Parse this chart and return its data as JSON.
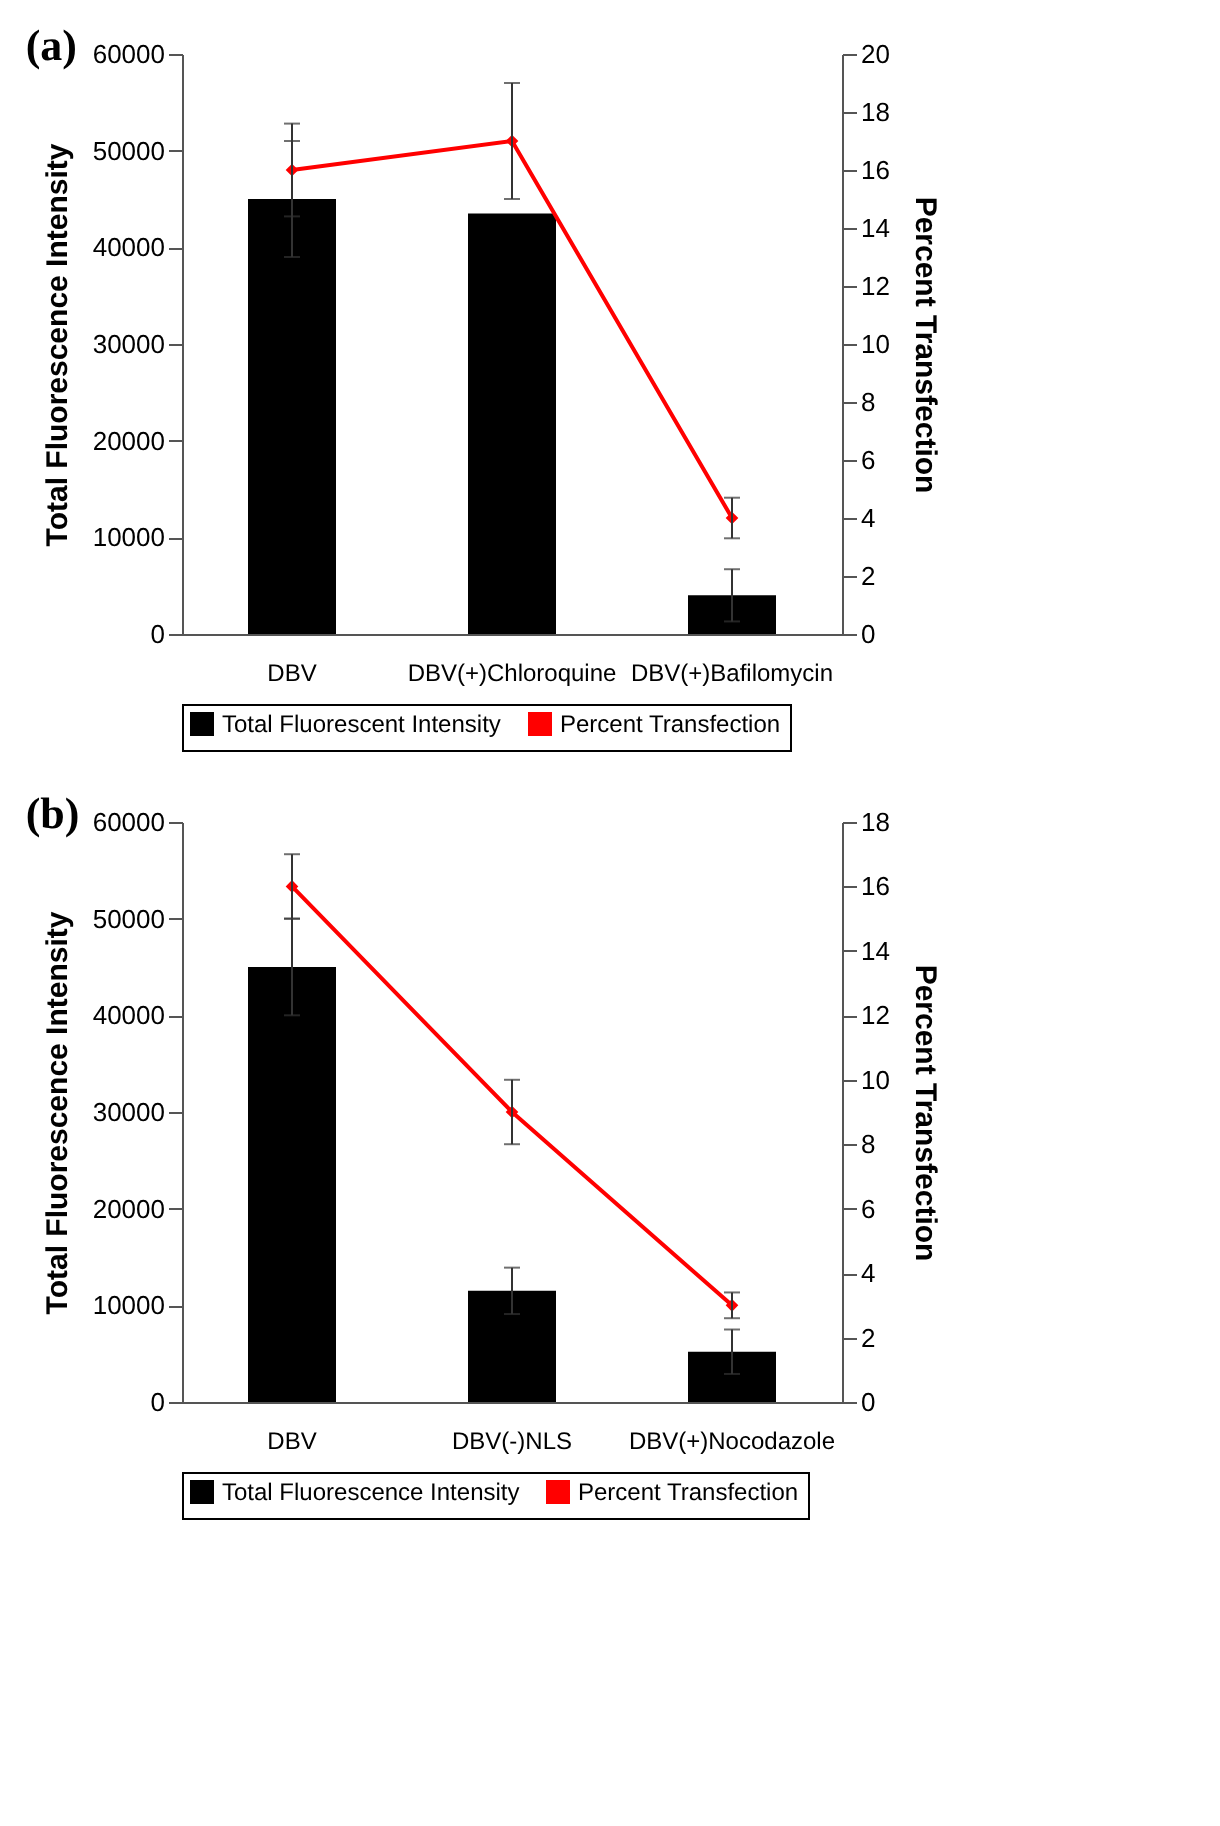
{
  "chart_data": [
    {
      "type": "bar",
      "title": "(a)",
      "categories": [
        "DBV",
        "DBV(+)Chloroquine",
        "DBV(+)Bafilomycin"
      ],
      "ylabel": "Total Fluorescence Intensity",
      "y2label": "Percent Transfection",
      "ylim": [
        0,
        60000
      ],
      "yticks": [
        0,
        10000,
        20000,
        30000,
        40000,
        50000,
        60000
      ],
      "y2lim": [
        0,
        20
      ],
      "y2ticks": [
        0,
        2,
        4,
        6,
        8,
        10,
        12,
        14,
        16,
        18,
        20
      ],
      "legend": "bottom",
      "marker": "diamond",
      "series": [
        {
          "name": "Total Fluorescent Intensity",
          "color": "#000000",
          "values": [
            45000,
            43500,
            4000
          ],
          "errors": [
            6000,
            null,
            2700
          ]
        },
        {
          "name": "Percent Transfection",
          "type": "line",
          "axis": "y2",
          "color": "#ff0000",
          "values": [
            16,
            17,
            4
          ],
          "errors": [
            1.6,
            2,
            0.7
          ]
        }
      ]
    },
    {
      "type": "bar",
      "title": "(b)",
      "categories": [
        "DBV",
        "DBV(-)NLS",
        "DBV(+)Nocodazole"
      ],
      "ylabel": "Total Fluorescence Intensity",
      "y2label": "Percent Transfection",
      "ylim": [
        0,
        60000
      ],
      "yticks": [
        0,
        10000,
        20000,
        30000,
        40000,
        50000,
        60000
      ],
      "y2lim": [
        0,
        18
      ],
      "y2ticks": [
        0,
        2,
        4,
        6,
        8,
        10,
        12,
        14,
        16,
        18
      ],
      "legend": "bottom",
      "marker": "diamond",
      "series": [
        {
          "name": "Total Fluorescence Intensity",
          "color": "#000000",
          "values": [
            45000,
            11500,
            5200
          ],
          "errors": [
            5000,
            2400,
            2300
          ]
        },
        {
          "name": "Percent Transfection",
          "type": "line",
          "axis": "y2",
          "color": "#ff0000",
          "values": [
            16,
            9,
            3
          ],
          "errors": [
            1,
            1,
            0.4
          ]
        }
      ]
    }
  ]
}
